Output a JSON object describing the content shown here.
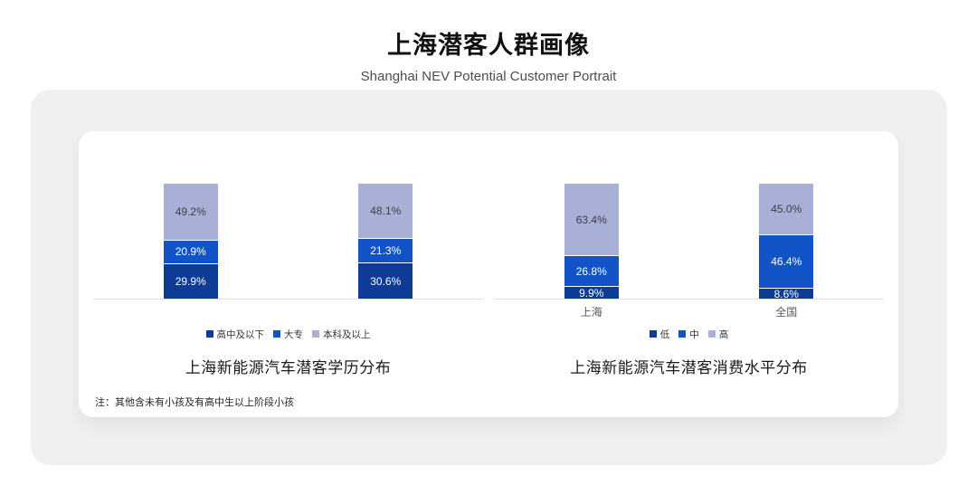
{
  "page": {
    "title": "上海潜客人群画像",
    "subtitle": "Shanghai NEV Potential Customer Portrait",
    "note": "注：其他含未有小孩及有高中生以上阶段小孩"
  },
  "colors": {
    "panel_background": "#F0F0F0",
    "card_background": "#FFFFFF",
    "axis_line": "#E0E0E0",
    "series_dark_blue": "#0D3B96",
    "series_medium_blue": "#1353C8",
    "series_light_blue": "#A8B0D8"
  },
  "chart_data": [
    {
      "type": "bar",
      "subtype": "stacked-percent",
      "title": "上海新能源汽车潜客学历分布",
      "categories": [
        "",
        ""
      ],
      "show_category_labels": false,
      "series": [
        {
          "name": "高中及以下",
          "color": "#0D3B96",
          "label_color": "#ffffff",
          "values": [
            29.9,
            30.6
          ]
        },
        {
          "name": "大专",
          "color": "#1353C8",
          "label_color": "#ffffff",
          "values": [
            20.9,
            21.3
          ]
        },
        {
          "name": "本科及以上",
          "color": "#A8B0D8",
          "label_color": "#404040",
          "values": [
            49.2,
            48.1
          ]
        }
      ],
      "value_suffix": "%",
      "ylim": [
        0,
        100
      ],
      "grid": false,
      "legend_position": "bottom"
    },
    {
      "type": "bar",
      "subtype": "stacked-percent",
      "title": "上海新能源汽车潜客消费水平分布",
      "categories": [
        "上海",
        "全国"
      ],
      "show_category_labels": true,
      "series": [
        {
          "name": "低",
          "color": "#0D3B96",
          "label_color": "#ffffff",
          "values": [
            9.9,
            8.6
          ]
        },
        {
          "name": "中",
          "color": "#1353C8",
          "label_color": "#ffffff",
          "values": [
            26.8,
            46.4
          ]
        },
        {
          "name": "高",
          "color": "#A8B0D8",
          "label_color": "#404040",
          "values": [
            63.4,
            45.0
          ]
        }
      ],
      "value_suffix": "%",
      "ylim": [
        0,
        100
      ],
      "grid": false,
      "legend_position": "bottom"
    }
  ]
}
